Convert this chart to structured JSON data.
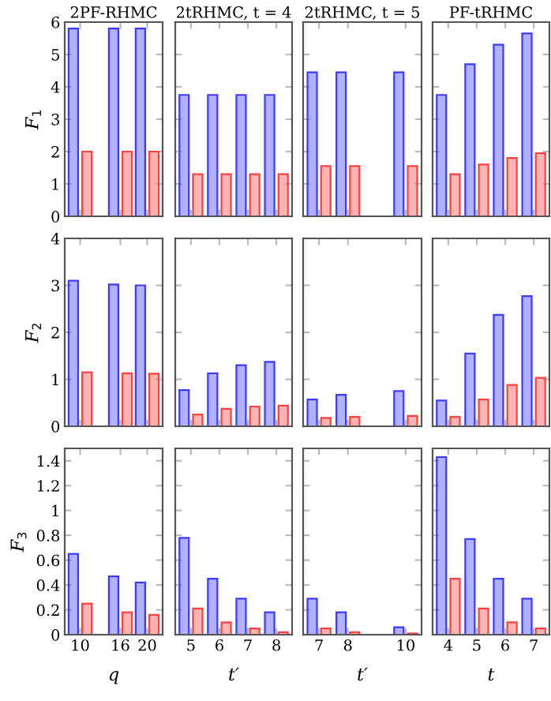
{
  "chart_data": [
    {
      "type": "bar",
      "title": "2PF-RHMC",
      "ylabel": "F$_{1}$",
      "x": [
        10,
        16,
        20
      ],
      "xlim": [
        7.7,
        22.3
      ],
      "xticks": [
        10,
        16,
        20
      ],
      "ylim": [
        0,
        6
      ],
      "yticks": [
        0,
        1,
        2,
        3,
        4,
        5,
        6
      ],
      "tick_labels": "y",
      "series": [
        {
          "color": "#3b3bff",
          "values": [
            5.8,
            5.8,
            5.8
          ]
        },
        {
          "color": "#ff4040",
          "values": [
            2.0,
            2.0,
            2.0
          ]
        }
      ]
    },
    {
      "type": "bar",
      "title": "2tRHMC, t = 4",
      "x": [
        5,
        6,
        7,
        8
      ],
      "xlim": [
        4.45,
        8.55
      ],
      "xticks": [
        5,
        6,
        7,
        8
      ],
      "ylim": [
        0,
        6
      ],
      "yticks": [
        0,
        1,
        2,
        3,
        4,
        5,
        6
      ],
      "tick_labels": false,
      "series": [
        {
          "color": "#3b3bff",
          "values": [
            3.75,
            3.75,
            3.75,
            3.75
          ]
        },
        {
          "color": "#ff4040",
          "values": [
            1.3,
            1.3,
            1.3,
            1.3
          ]
        }
      ]
    },
    {
      "type": "bar",
      "title": "2tRHMC, t = 5",
      "x": [
        7,
        8,
        10
      ],
      "xlim": [
        6.45,
        10.55
      ],
      "xticks": [
        7,
        8,
        10
      ],
      "ylim": [
        0,
        6
      ],
      "yticks": [
        0,
        1,
        2,
        3,
        4,
        5,
        6
      ],
      "tick_labels": false,
      "series": [
        {
          "color": "#3b3bff",
          "values": [
            4.45,
            4.45,
            4.45
          ]
        },
        {
          "color": "#ff4040",
          "values": [
            1.55,
            1.55,
            1.55
          ]
        }
      ]
    },
    {
      "type": "bar",
      "title": "PF-tRHMC",
      "x": [
        4,
        5,
        6,
        7
      ],
      "xlim": [
        3.45,
        7.55
      ],
      "xticks": [
        4,
        5,
        6,
        7
      ],
      "ylim": [
        0,
        6
      ],
      "yticks": [
        0,
        1,
        2,
        3,
        4,
        5,
        6
      ],
      "tick_labels": false,
      "series": [
        {
          "color": "#3b3bff",
          "values": [
            3.75,
            4.7,
            5.3,
            5.65
          ]
        },
        {
          "color": "#ff4040",
          "values": [
            1.3,
            1.6,
            1.8,
            1.95
          ]
        }
      ]
    },
    {
      "type": "bar",
      "ylabel": "F$_{2}$",
      "x": [
        10,
        16,
        20
      ],
      "xlim": [
        7.7,
        22.3
      ],
      "xticks": [
        10,
        16,
        20
      ],
      "ylim": [
        0,
        4
      ],
      "yticks": [
        0,
        1,
        2,
        3,
        4
      ],
      "tick_labels": "y",
      "series": [
        {
          "color": "#3b3bff",
          "values": [
            3.1,
            3.02,
            3.0
          ]
        },
        {
          "color": "#ff4040",
          "values": [
            1.15,
            1.13,
            1.12
          ]
        }
      ]
    },
    {
      "type": "bar",
      "x": [
        5,
        6,
        7,
        8
      ],
      "xlim": [
        4.45,
        8.55
      ],
      "xticks": [
        5,
        6,
        7,
        8
      ],
      "ylim": [
        0,
        4
      ],
      "yticks": [
        0,
        1,
        2,
        3,
        4
      ],
      "tick_labels": false,
      "series": [
        {
          "color": "#3b3bff",
          "values": [
            0.77,
            1.13,
            1.3,
            1.37
          ]
        },
        {
          "color": "#ff4040",
          "values": [
            0.25,
            0.37,
            0.42,
            0.44
          ]
        }
      ]
    },
    {
      "type": "bar",
      "x": [
        7,
        8,
        10
      ],
      "xlim": [
        6.45,
        10.55
      ],
      "xticks": [
        7,
        8,
        10
      ],
      "ylim": [
        0,
        4
      ],
      "yticks": [
        0,
        1,
        2,
        3,
        4
      ],
      "tick_labels": false,
      "series": [
        {
          "color": "#3b3bff",
          "values": [
            0.57,
            0.67,
            0.75
          ]
        },
        {
          "color": "#ff4040",
          "values": [
            0.18,
            0.2,
            0.22
          ]
        }
      ]
    },
    {
      "type": "bar",
      "x": [
        4,
        5,
        6,
        7
      ],
      "xlim": [
        3.45,
        7.55
      ],
      "xticks": [
        4,
        5,
        6,
        7
      ],
      "ylim": [
        0,
        4
      ],
      "yticks": [
        0,
        1,
        2,
        3,
        4
      ],
      "tick_labels": false,
      "series": [
        {
          "color": "#3b3bff",
          "values": [
            0.55,
            1.55,
            2.37,
            2.77
          ]
        },
        {
          "color": "#ff4040",
          "values": [
            0.2,
            0.57,
            0.88,
            1.03
          ]
        }
      ]
    },
    {
      "type": "bar",
      "ylabel": "F$_{3}$",
      "xlabel": "q",
      "x": [
        10,
        16,
        20
      ],
      "xlim": [
        7.7,
        22.3
      ],
      "xticks": [
        10,
        16,
        20
      ],
      "ylim": [
        0,
        1.5
      ],
      "yticks": [
        0,
        0.2,
        0.4,
        0.6,
        0.8,
        1,
        1.2,
        1.4
      ],
      "series": [
        {
          "color": "#3b3bff",
          "values": [
            0.65,
            0.47,
            0.42
          ]
        },
        {
          "color": "#ff4040",
          "values": [
            0.25,
            0.18,
            0.16
          ]
        }
      ]
    },
    {
      "type": "bar",
      "xlabel": "t′",
      "x": [
        5,
        6,
        7,
        8
      ],
      "xlim": [
        4.45,
        8.55
      ],
      "xticks": [
        5,
        6,
        7,
        8
      ],
      "ylim": [
        0,
        1.5
      ],
      "yticks": [
        0,
        0.2,
        0.4,
        0.6,
        0.8,
        1,
        1.2,
        1.4
      ],
      "tick_labels": "x",
      "series": [
        {
          "color": "#3b3bff",
          "values": [
            0.78,
            0.45,
            0.29,
            0.18
          ]
        },
        {
          "color": "#ff4040",
          "values": [
            0.21,
            0.1,
            0.05,
            0.02
          ]
        }
      ]
    },
    {
      "type": "bar",
      "xlabel": "t′",
      "x": [
        7,
        8,
        10
      ],
      "xlim": [
        6.45,
        10.55
      ],
      "xticks": [
        7,
        8,
        10
      ],
      "ylim": [
        0,
        1.5
      ],
      "yticks": [
        0,
        0.2,
        0.4,
        0.6,
        0.8,
        1,
        1.2,
        1.4
      ],
      "tick_labels": "x",
      "series": [
        {
          "color": "#3b3bff",
          "values": [
            0.29,
            0.18,
            0.06
          ]
        },
        {
          "color": "#ff4040",
          "values": [
            0.05,
            0.02,
            0.01
          ]
        }
      ]
    },
    {
      "type": "bar",
      "xlabel": "t",
      "x": [
        4,
        5,
        6,
        7
      ],
      "xlim": [
        3.45,
        7.55
      ],
      "xticks": [
        4,
        5,
        6,
        7
      ],
      "ylim": [
        0,
        1.5
      ],
      "yticks": [
        0,
        0.2,
        0.4,
        0.6,
        0.8,
        1,
        1.2,
        1.4
      ],
      "tick_labels": "x",
      "series": [
        {
          "color": "#3b3bff",
          "values": [
            1.43,
            0.77,
            0.45,
            0.29
          ]
        },
        {
          "color": "#ff4040",
          "values": [
            0.45,
            0.21,
            0.1,
            0.05
          ]
        }
      ]
    }
  ]
}
